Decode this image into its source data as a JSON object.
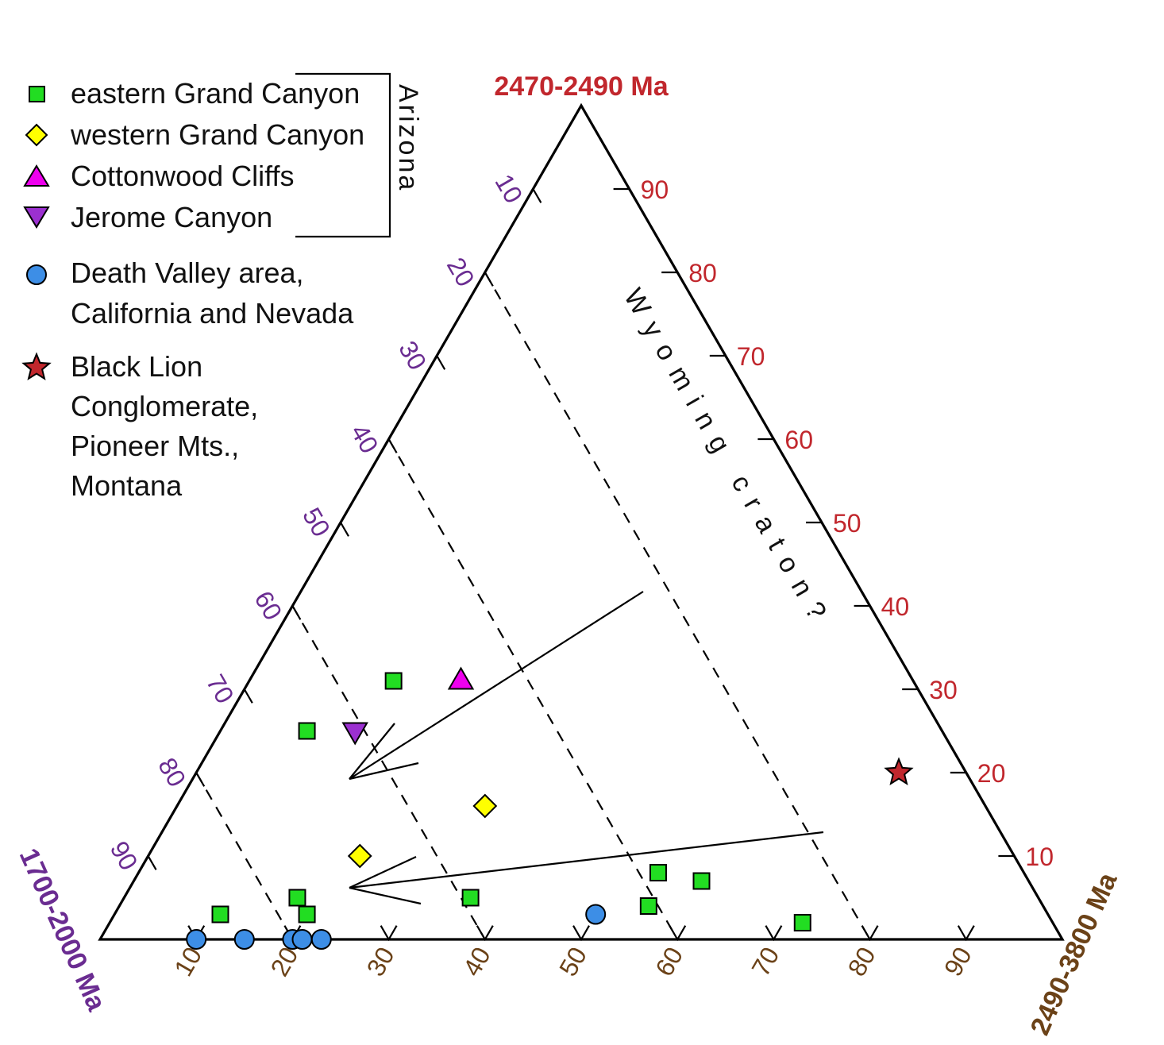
{
  "chart_data": {
    "type": "scatter",
    "subtype": "ternary",
    "corners": {
      "top": {
        "label": "2470-2490 Ma",
        "color": "#c1272d"
      },
      "left": {
        "label": "1700-2000 Ma",
        "color": "#6a2c91"
      },
      "right": {
        "label": "2490-3800 Ma",
        "color": "#6b4218"
      }
    },
    "ticks": {
      "top_axis_values": [
        "10",
        "20",
        "30",
        "40",
        "50",
        "60",
        "70",
        "80",
        "90"
      ],
      "left_axis_values": [
        "10",
        "20",
        "30",
        "40",
        "50",
        "60",
        "70",
        "80",
        "90"
      ],
      "bottom_axis_values": [
        "10",
        "20",
        "30",
        "40",
        "50",
        "60",
        "70",
        "80",
        "90"
      ]
    },
    "grid": "dashed lines of constant 2470-2490 Ma fraction at 20, 40, 60, 80",
    "annotation": "Wyoming craton?",
    "bracket_label": "Arizona",
    "legend": [
      {
        "label": "eastern Grand Canyon",
        "marker": "square",
        "color": "#22dd22"
      },
      {
        "label": "western Grand Canyon",
        "marker": "diamond",
        "color": "#ffff00"
      },
      {
        "label": "Cottonwood Cliffs",
        "marker": "triangle-up",
        "color": "#ee00ee"
      },
      {
        "label": "Jerome Canyon",
        "marker": "triangle-down",
        "color": "#9b30d0"
      },
      {
        "label": "Death Valley area,",
        "label2": "California and Nevada",
        "marker": "circle",
        "color": "#3d8ee6"
      },
      {
        "label": "Black Lion",
        "label2": "Conglomerate,",
        "label3": "Pioneer Mts.,",
        "label4": "Montana",
        "marker": "star",
        "color": "#c1272d"
      }
    ],
    "series": [
      {
        "name": "eastern Grand Canyon",
        "points": [
          {
            "a_1700_2000": 54,
            "b_2470_2490": 31,
            "c_2490_3800": 15
          },
          {
            "a_1700_2000": 66,
            "b_2470_2490": 25,
            "c_2490_3800": 9
          },
          {
            "a_1700_2000": 38,
            "b_2470_2490": 8,
            "c_2490_3800": 54
          },
          {
            "a_1700_2000": 34,
            "b_2470_2490": 7,
            "c_2490_3800": 59
          },
          {
            "a_1700_2000": 41,
            "b_2470_2490": 4,
            "c_2490_3800": 55
          },
          {
            "a_1700_2000": 59,
            "b_2470_2490": 5,
            "c_2490_3800": 36
          },
          {
            "a_1700_2000": 77,
            "b_2470_2490": 5,
            "c_2490_3800": 18
          },
          {
            "a_1700_2000": 77,
            "b_2470_2490": 3,
            "c_2490_3800": 20
          },
          {
            "a_1700_2000": 86,
            "b_2470_2490": 3,
            "c_2490_3800": 11
          },
          {
            "a_1700_2000": 26,
            "b_2470_2490": 2,
            "c_2490_3800": 72
          }
        ]
      },
      {
        "name": "western Grand Canyon",
        "points": [
          {
            "a_1700_2000": 52,
            "b_2470_2490": 16,
            "c_2490_3800": 32
          },
          {
            "a_1700_2000": 68,
            "b_2470_2490": 10,
            "c_2490_3800": 22
          }
        ]
      },
      {
        "name": "Cottonwood Cliffs",
        "points": [
          {
            "a_1700_2000": 47,
            "b_2470_2490": 31,
            "c_2490_3800": 22
          }
        ]
      },
      {
        "name": "Jerome Canyon",
        "points": [
          {
            "a_1700_2000": 61,
            "b_2470_2490": 25,
            "c_2490_3800": 14
          }
        ]
      },
      {
        "name": "Death Valley area, California and Nevada",
        "points": [
          {
            "a_1700_2000": 90,
            "b_2470_2490": 0,
            "c_2490_3800": 10
          },
          {
            "a_1700_2000": 85,
            "b_2470_2490": 0,
            "c_2490_3800": 15
          },
          {
            "a_1700_2000": 80,
            "b_2470_2490": 0,
            "c_2490_3800": 20
          },
          {
            "a_1700_2000": 79,
            "b_2470_2490": 0,
            "c_2490_3800": 21
          },
          {
            "a_1700_2000": 77,
            "b_2470_2490": 0,
            "c_2490_3800": 23
          },
          {
            "a_1700_2000": 47,
            "b_2470_2490": 3,
            "c_2490_3800": 50
          }
        ]
      },
      {
        "name": "Black Lion Conglomerate, Pioneer Mts., Montana",
        "points": [
          {
            "a_1700_2000": 7,
            "b_2470_2490": 20,
            "c_2490_3800": 73
          }
        ]
      }
    ]
  }
}
